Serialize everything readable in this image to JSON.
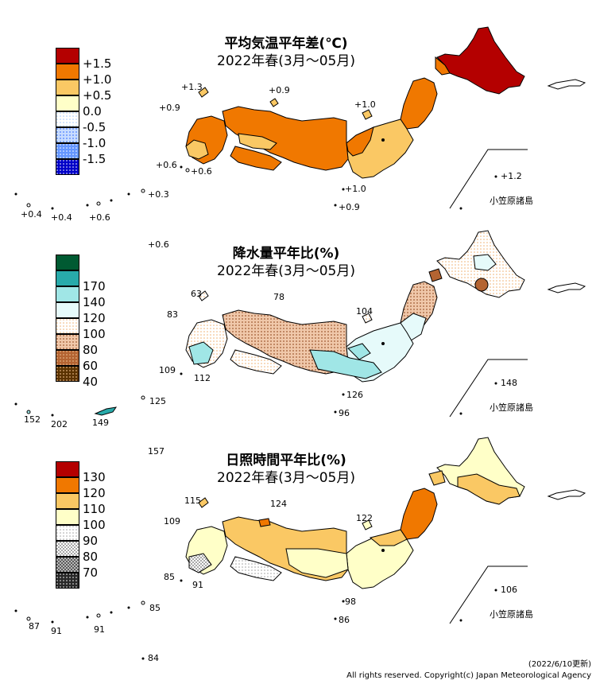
{
  "panels": [
    {
      "title": "平均気温平年差(℃)",
      "period": "2022年春(3月～05月)",
      "legend": [
        {
          "label": "+1.5",
          "color": "#b40000",
          "pattern": "solid"
        },
        {
          "label": "+1.0",
          "color": "#f07800",
          "pattern": "solid"
        },
        {
          "label": "+0.5",
          "color": "#fac864",
          "pattern": "solid"
        },
        {
          "label": "0.0",
          "color": "#ffffc8",
          "pattern": "solid"
        },
        {
          "label": "-0.5",
          "color": "#ffffff",
          "pattern": "dots-lightblue"
        },
        {
          "label": "-1.0",
          "color": "#c8dcff",
          "pattern": "dots-blue"
        },
        {
          "label": "-1.5",
          "color": "#6496ff",
          "pattern": "dots-white"
        },
        {
          "label": "",
          "color": "#0000c8",
          "pattern": "dots-white"
        }
      ],
      "stations": [
        {
          "label": "+1.3"
        },
        {
          "label": "+0.9"
        },
        {
          "label": "+0.9"
        },
        {
          "label": "+1.0"
        },
        {
          "label": "+0.6"
        },
        {
          "label": "+0.6"
        },
        {
          "label": "+1.0"
        },
        {
          "label": "+0.9"
        },
        {
          "label": "+1.2"
        },
        {
          "label": "+0.4"
        },
        {
          "label": "+0.4"
        },
        {
          "label": "+0.6"
        },
        {
          "label": "+0.3"
        },
        {
          "label": "+0.6"
        }
      ],
      "ogasawara_label": "小笠原諸島"
    },
    {
      "title": "降水量平年比(%)",
      "period": "2022年春(3月～05月)",
      "legend": [
        {
          "label": "",
          "color": "#005a32",
          "pattern": "solid"
        },
        {
          "label": "170",
          "color": "#28aaaa",
          "pattern": "solid"
        },
        {
          "label": "140",
          "color": "#a0e6e6",
          "pattern": "solid"
        },
        {
          "label": "120",
          "color": "#e6fafa",
          "pattern": "solid"
        },
        {
          "label": "100",
          "color": "#ffffff",
          "pattern": "dots-orange"
        },
        {
          "label": "80",
          "color": "#f0c8aa",
          "pattern": "dots-brown"
        },
        {
          "label": "60",
          "color": "#b46432",
          "pattern": "dots-tan"
        },
        {
          "label": "40",
          "color": "#5a3200",
          "pattern": "dots-tan"
        }
      ],
      "stations": [
        {
          "label": "63"
        },
        {
          "label": "78"
        },
        {
          "label": "83"
        },
        {
          "label": "104"
        },
        {
          "label": "109"
        },
        {
          "label": "112"
        },
        {
          "label": "126"
        },
        {
          "label": "96"
        },
        {
          "label": "148"
        },
        {
          "label": "152"
        },
        {
          "label": "202"
        },
        {
          "label": "149"
        },
        {
          "label": "125"
        },
        {
          "label": "157"
        }
      ],
      "ogasawara_label": "小笠原諸島"
    },
    {
      "title": "日照時間平年比(%)",
      "period": "2022年春(3月～05月)",
      "legend": [
        {
          "label": "130",
          "color": "#b40000",
          "pattern": "solid"
        },
        {
          "label": "120",
          "color": "#f07800",
          "pattern": "solid"
        },
        {
          "label": "110",
          "color": "#fac864",
          "pattern": "solid"
        },
        {
          "label": "100",
          "color": "#ffffc8",
          "pattern": "solid"
        },
        {
          "label": "90",
          "color": "#ffffff",
          "pattern": "dots-gray"
        },
        {
          "label": "80",
          "color": "#d8d8d8",
          "pattern": "checker"
        },
        {
          "label": "70",
          "color": "#8c8c8c",
          "pattern": "checker-dark"
        },
        {
          "label": "",
          "color": "#282828",
          "pattern": "dots-white"
        }
      ],
      "stations": [
        {
          "label": "115"
        },
        {
          "label": "124"
        },
        {
          "label": "109"
        },
        {
          "label": "122"
        },
        {
          "label": "85"
        },
        {
          "label": "91"
        },
        {
          "label": "98"
        },
        {
          "label": "86"
        },
        {
          "label": "106"
        },
        {
          "label": "87"
        },
        {
          "label": "91"
        },
        {
          "label": "91"
        },
        {
          "label": "85"
        },
        {
          "label": "84"
        }
      ],
      "ogasawara_label": "小笠原諸島"
    }
  ],
  "footer": {
    "updated": "(2022/6/10更新)",
    "copyright": "All rights reserved. Copyright(c) Japan Meteorological Agency"
  }
}
